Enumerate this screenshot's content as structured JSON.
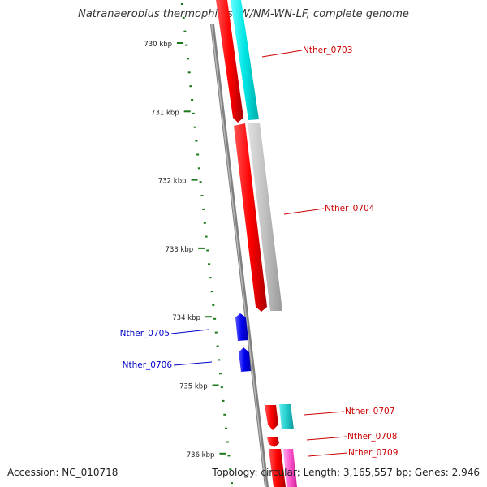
{
  "title": "Natranaerobius thermophilus JW/NM-WN-LF, complete genome",
  "accession": "Accession: NC_010718",
  "summary": "Topology: circular; Length: 3,165,557 bp; Genes: 2,946",
  "ticks": [
    {
      "label": "730 kbp",
      "kbp": 730
    },
    {
      "label": "731 kbp",
      "kbp": 731
    },
    {
      "label": "732 kbp",
      "kbp": 732
    },
    {
      "label": "733 kbp",
      "kbp": 733
    },
    {
      "label": "734 kbp",
      "kbp": 734
    },
    {
      "label": "735 kbp",
      "kbp": 735
    },
    {
      "label": "736 kbp",
      "kbp": 736
    }
  ],
  "genes": [
    {
      "name": "Nther_0703",
      "color": "#cc0000"
    },
    {
      "name": "Nther_0704",
      "color": "#cc0000"
    },
    {
      "name": "Nther_0705",
      "color": "#0000cc"
    },
    {
      "name": "Nther_0706",
      "color": "#0000cc"
    },
    {
      "name": "Nther_0707",
      "color": "#cc0000"
    },
    {
      "name": "Nther_0708",
      "color": "#cc0000"
    },
    {
      "name": "Nther_0709",
      "color": "#cc0000"
    }
  ],
  "colors": {
    "forward_strand": "#ff0000",
    "reverse_strand": "#0000ff",
    "cog_cyan": "#00e5e5",
    "cog_gray": "#bbbbbb",
    "cog_teal": "#22cccc",
    "cog_pink": "#ff55cc",
    "backbone": "#777777",
    "ruler": "#1a7a1a"
  }
}
